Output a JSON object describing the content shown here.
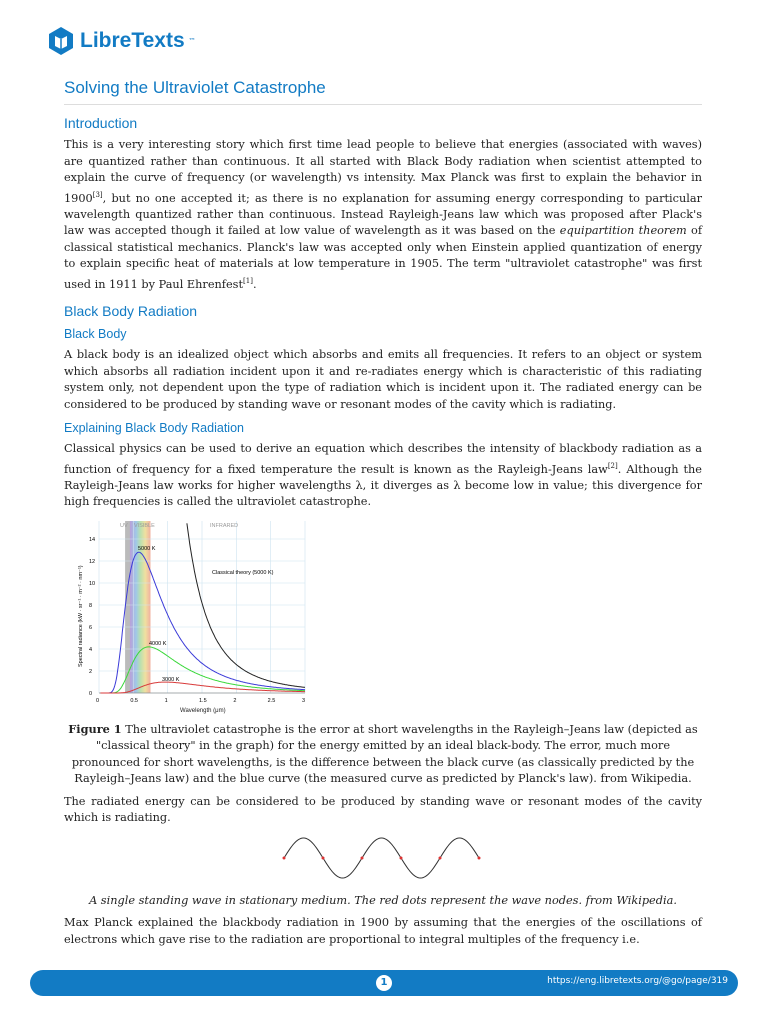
{
  "header": {
    "logo_text": "LibreTexts",
    "logo_tm": "™"
  },
  "title": "Solving the Ultraviolet Catastrophe",
  "sections": {
    "intro": {
      "heading": "Introduction",
      "p1a": "This is a very interesting story which first time lead people to believe that energies (associated with waves) are quantized rather than continuous. It all started with Black Body radiation when scientist attempted to explain the curve of frequency (or wavelength) vs intensity. Max Planck was first to explain the behavior in 1900",
      "ref3": "[3]",
      "p1b": ", but no one accepted it; as there is no explanation for assuming energy corresponding to particular wavelength quantized rather than continuous. Instead Rayleigh-Jeans law which was proposed after Plack's law was accepted though it failed at low value of wavelength as it was based on the ",
      "p1em": "equipartition theorem",
      "p1c": " of classical statistical mechanics. Planck's law was accepted only when Einstein applied quantization of energy to explain specific heat of materials at low temperature in 1905. The term \"ultraviolet catastrophe\" was first used in 1911 by Paul Ehrenfest",
      "ref1": "[1]",
      "p1d": "."
    },
    "bbr": {
      "heading": "Black Body Radiation"
    },
    "bb": {
      "heading": "Black Body",
      "p": "A black body is an idealized object which absorbs and emits all frequencies. It refers to an object or system which absorbs all radiation incident upon it and re-radiates energy which is characteristic of this radiating system only, not dependent upon the type of radiation which is incident upon it. The radiated energy can be considered to be produced by standing wave or resonant modes of the cavity which is radiating."
    },
    "explain": {
      "heading": "Explaining Black Body Radiation",
      "pa": "Classical physics can be used to derive an equation which describes the intensity of blackbody radiation as a function of frequency for a fixed temperature the result is known as the Rayleigh-Jeans law",
      "ref2": "[2]",
      "pb": ". Although the Rayleigh-Jeans law works for higher wavelengths λ, it diverges as λ become low in value; this divergence for high frequencies is called the ultraviolet catastrophe."
    }
  },
  "figure": {
    "bands": [
      "UV",
      "VISIBLE",
      "INFRARED"
    ],
    "yticks": [
      "0",
      "2",
      "4",
      "6",
      "8",
      "10",
      "12",
      "14"
    ],
    "xticks": [
      "0",
      "0.5",
      "1",
      "1.5",
      "2",
      "2.5",
      "3"
    ],
    "xlabel": "Wavelength (μm)",
    "ylabel": "Spectral radiance (kW · sr⁻¹ · m⁻² · nm⁻¹)",
    "labels": {
      "t5000": "5000 K",
      "t4000": "4000 K",
      "t3000": "3000 K",
      "classical": "Classical theory (5000 K)"
    },
    "colors": {
      "t5000": "#3a3ad8",
      "t4000": "#3ad83a",
      "t3000": "#d83a3a",
      "classical": "#222222"
    },
    "caption_bold": "Figure 1",
    "caption": " The ultraviolet catastrophe is the error at short wavelengths in the Rayleigh–Jeans law (depicted as \"classical theory\" in the graph) for the energy emitted by an ideal black-body. The error, much more pronounced for short wavelengths, is the difference between the black curve (as classically predicted by the Rayleigh–Jeans law) and the blue curve (the measured curve as predicted by Planck's law). from Wikipedia."
  },
  "p_after": "The radiated energy can be considered to be produced by standing wave or resonant modes of the cavity which is radiating.",
  "wave_caption": "A single standing wave in stationary medium. The red dots represent the wave nodes. from Wikipedia.",
  "p_last": "Max Planck explained the blackbody radiation in 1900 by assuming that the energies of the oscillations of electrons which gave rise to the radiation are proportional to integral multiples of the frequency i.e.",
  "footer": {
    "page": "1",
    "url": "https://eng.libretexts.org/@go/page/319"
  }
}
